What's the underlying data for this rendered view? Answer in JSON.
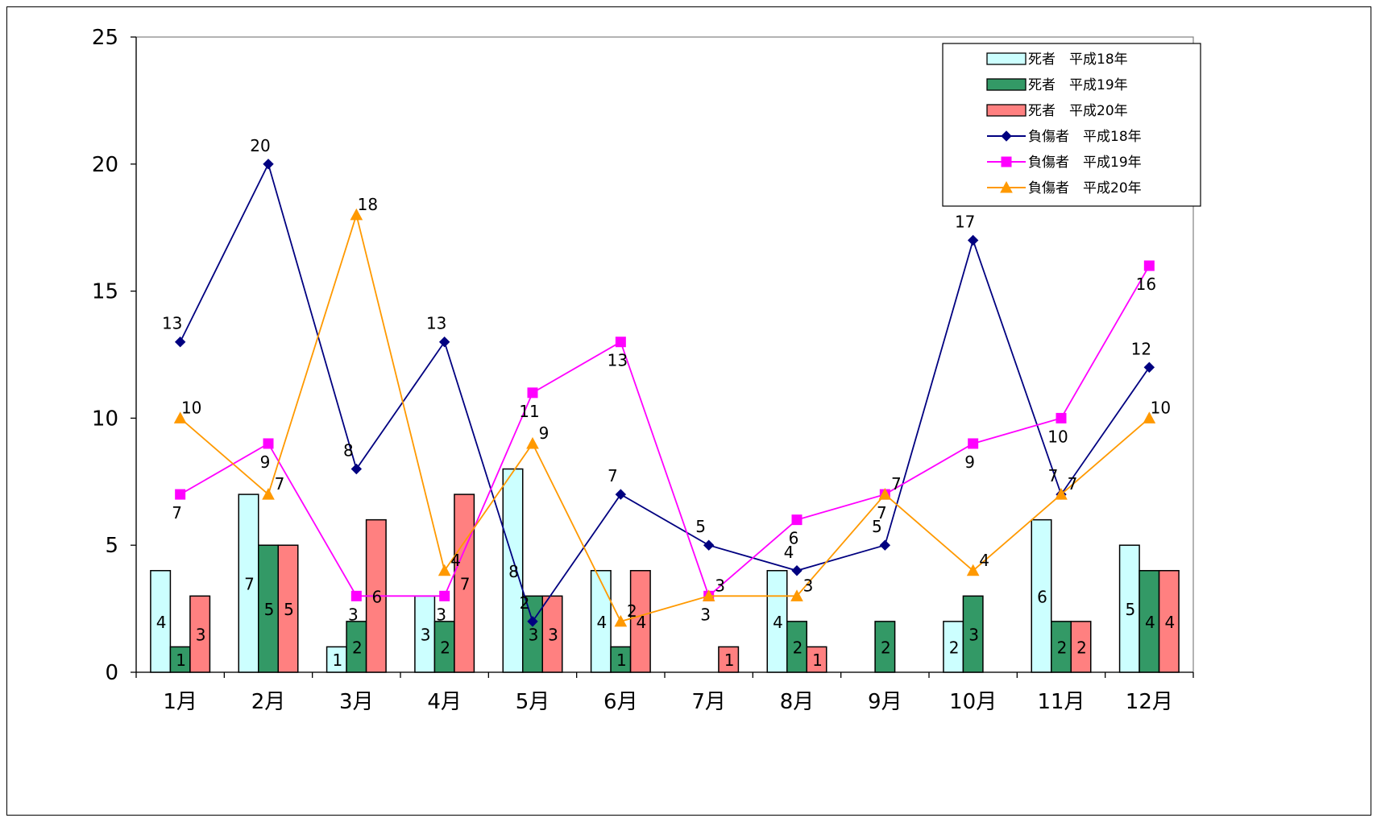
{
  "chart_data": {
    "type": "bar",
    "categories": [
      "1月",
      "2月",
      "3月",
      "4月",
      "5月",
      "6月",
      "7月",
      "8月",
      "9月",
      "10月",
      "11月",
      "12月"
    ],
    "ylim": [
      0,
      25
    ],
    "yticks": [
      0,
      5,
      10,
      15,
      20,
      25
    ],
    "grid": false,
    "legend_position": "top-right",
    "bar_series": [
      {
        "name": "死者　平成18年",
        "color": "#ccffff",
        "values": [
          4,
          7,
          1,
          3,
          8,
          4,
          0,
          4,
          0,
          2,
          6,
          5
        ]
      },
      {
        "name": "死者　平成19年",
        "color": "#339966",
        "values": [
          1,
          5,
          2,
          2,
          3,
          1,
          0,
          2,
          2,
          3,
          2,
          4
        ]
      },
      {
        "name": "死者　平成20年",
        "color": "#ff8080",
        "values": [
          3,
          5,
          6,
          7,
          3,
          4,
          1,
          1,
          0,
          0,
          2,
          4
        ]
      }
    ],
    "line_series": [
      {
        "name": "負傷者　平成18年",
        "color": "#000080",
        "marker": "diamond",
        "values": [
          13,
          20,
          8,
          13,
          2,
          7,
          5,
          4,
          5,
          17,
          7,
          12
        ]
      },
      {
        "name": "負傷者　平成19年",
        "color": "#ff00ff",
        "marker": "square",
        "values": [
          7,
          9,
          3,
          3,
          11,
          13,
          3,
          6,
          7,
          9,
          10,
          16
        ]
      },
      {
        "name": "負傷者　平成20年",
        "color": "#ff9900",
        "marker": "triangle",
        "values": [
          10,
          7,
          18,
          4,
          9,
          2,
          3,
          3,
          7,
          4,
          7,
          10
        ]
      }
    ]
  }
}
